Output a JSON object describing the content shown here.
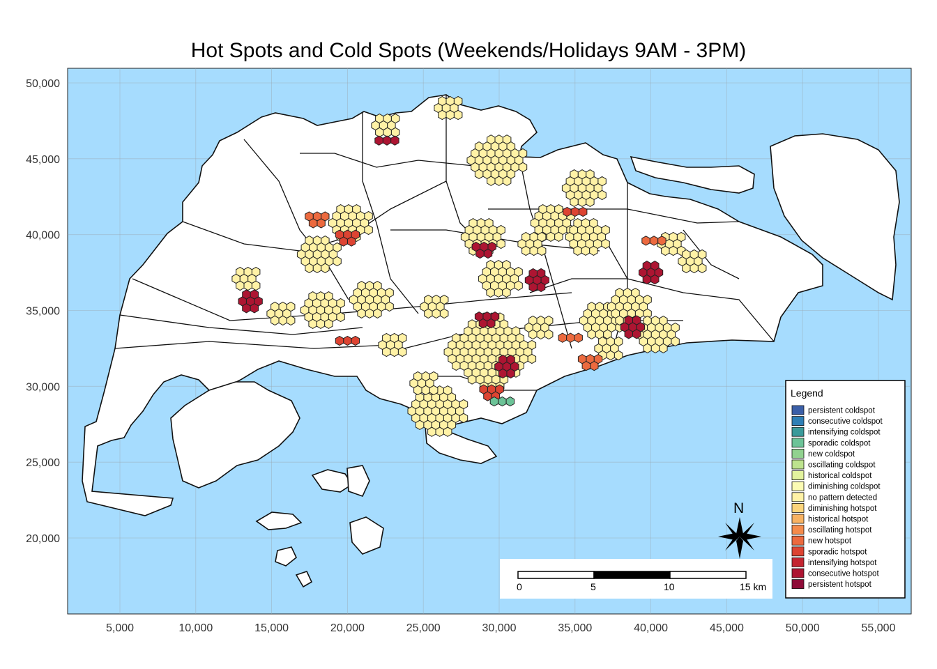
{
  "title": "Hot Spots and Cold Spots (Weekends/Holidays 9AM - 3PM)",
  "axes": {
    "x_ticks": [
      "5,000",
      "10,000",
      "15,000",
      "20,000",
      "25,000",
      "30,000",
      "35,000",
      "40,000",
      "45,000",
      "50,000",
      "55,000"
    ],
    "y_ticks": [
      "50,000",
      "45,000",
      "40,000",
      "35,000",
      "30,000",
      "25,000",
      "20,000"
    ],
    "x_values": [
      5000,
      10000,
      15000,
      20000,
      25000,
      30000,
      35000,
      40000,
      45000,
      50000,
      55000
    ],
    "y_values": [
      50000,
      45000,
      40000,
      35000,
      30000,
      25000,
      20000
    ],
    "xlim": [
      2000,
      57000
    ],
    "ylim": [
      15000,
      51000
    ]
  },
  "colors": {
    "sea": "#a6dcfe",
    "land": "#ffffff",
    "grid": "#9aa5ad"
  },
  "legend": {
    "title": "Legend",
    "items": [
      {
        "label": "persistent coldspot",
        "color": "#3b5fa8"
      },
      {
        "label": "consecutive coldspot",
        "color": "#2e7fb5"
      },
      {
        "label": "intensifying coldspot",
        "color": "#3a9a9a"
      },
      {
        "label": "sporadic coldspot",
        "color": "#6cc397"
      },
      {
        "label": "new coldspot",
        "color": "#91d28f"
      },
      {
        "label": "oscillating coldspot",
        "color": "#bde38e"
      },
      {
        "label": "historical coldspot",
        "color": "#e2f39d"
      },
      {
        "label": "diminishing coldspot",
        "color": "#fbfbb3"
      },
      {
        "label": "no pattern detected",
        "color": "#fff2a6"
      },
      {
        "label": "diminishing hotspot",
        "color": "#fcd47b"
      },
      {
        "label": "historical hotspot",
        "color": "#f8b262"
      },
      {
        "label": "oscillating hotspot",
        "color": "#f48b4b"
      },
      {
        "label": "new hotspot",
        "color": "#ec6a3f"
      },
      {
        "label": "sporadic hotspot",
        "color": "#dd4432"
      },
      {
        "label": "intensifying hotspot",
        "color": "#c42430"
      },
      {
        "label": "consecutive hotspot",
        "color": "#ad1532"
      },
      {
        "label": "persistent hotspot",
        "color": "#8e0b37"
      }
    ]
  },
  "scalebar": {
    "labels": [
      "0",
      "5",
      "10",
      "15 km"
    ]
  },
  "north_arrow": {
    "label": "N"
  },
  "hex_clusters": [
    {
      "x": 13600,
      "y": 35600,
      "category": "consecutive hotspot",
      "size": 3
    },
    {
      "x": 18000,
      "y": 41200,
      "category": "new hotspot",
      "size": 2
    },
    {
      "x": 20000,
      "y": 40000,
      "category": "sporadic hotspot",
      "size": 2
    },
    {
      "x": 22600,
      "y": 46200,
      "category": "consecutive hotspot",
      "size": 1
    },
    {
      "x": 20000,
      "y": 33000,
      "category": "sporadic hotspot",
      "size": 1
    },
    {
      "x": 29000,
      "y": 39200,
      "category": "consecutive hotspot",
      "size": 2
    },
    {
      "x": 32500,
      "y": 37000,
      "category": "consecutive hotspot",
      "size": 3
    },
    {
      "x": 35000,
      "y": 41500,
      "category": "sporadic hotspot",
      "size": 1
    },
    {
      "x": 40000,
      "y": 37500,
      "category": "consecutive hotspot",
      "size": 3
    },
    {
      "x": 38800,
      "y": 33900,
      "category": "consecutive hotspot",
      "size": 3
    },
    {
      "x": 29200,
      "y": 34600,
      "category": "consecutive hotspot",
      "size": 2
    },
    {
      "x": 30500,
      "y": 31300,
      "category": "consecutive hotspot",
      "size": 4
    },
    {
      "x": 29500,
      "y": 29800,
      "category": "sporadic hotspot",
      "size": 2
    },
    {
      "x": 36000,
      "y": 31800,
      "category": "new hotspot",
      "size": 2
    },
    {
      "x": 34700,
      "y": 33200,
      "category": "new hotspot",
      "size": 1
    },
    {
      "x": 40200,
      "y": 39600,
      "category": "new hotspot",
      "size": 1
    },
    {
      "x": 30200,
      "y": 29000,
      "category": "sporadic coldspot",
      "size": 1
    }
  ]
}
